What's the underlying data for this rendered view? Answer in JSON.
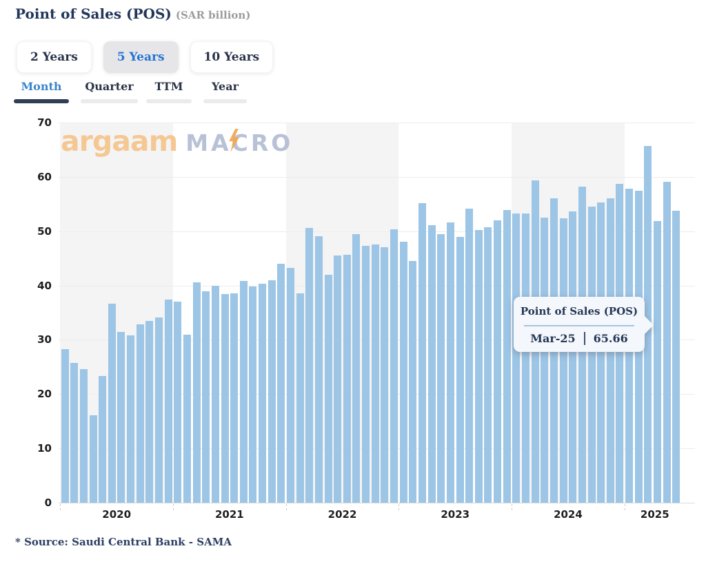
{
  "header": {
    "title": "Point of Sales (POS)",
    "unit": "(SAR billion)"
  },
  "periods": [
    {
      "label": "2 Years",
      "active": false
    },
    {
      "label": "5 Years",
      "active": true
    },
    {
      "label": "10 Years",
      "active": false
    }
  ],
  "tabs": [
    {
      "label": "Month",
      "active": true
    },
    {
      "label": "Quarter",
      "active": false
    },
    {
      "label": "TTM",
      "active": false
    },
    {
      "label": "Year",
      "active": false
    }
  ],
  "watermark": {
    "brand": "argaam",
    "suffix": "MACRO"
  },
  "tooltip": {
    "title": "Point of Sales (POS)",
    "label": "Mar-25",
    "value": "65.66"
  },
  "source": "* Source: Saudi Central Bank - SAMA",
  "colors": {
    "bar": "#9cc5e6",
    "band_gray": "#f4f4f5",
    "accent_blue": "#2472d2",
    "navy": "#22365a"
  },
  "chart_data": {
    "type": "bar",
    "title": "Point of Sales (POS)",
    "ylabel": "SAR billion",
    "ylim": [
      0,
      70
    ],
    "yticks": [
      0,
      10,
      20,
      30,
      40,
      50,
      60,
      70
    ],
    "grid": true,
    "legend": false,
    "year_labels": [
      "2020",
      "2021",
      "2022",
      "2023",
      "2024",
      "2025"
    ],
    "x": [
      "Jan-20",
      "Feb-20",
      "Mar-20",
      "Apr-20",
      "May-20",
      "Jun-20",
      "Jul-20",
      "Aug-20",
      "Sep-20",
      "Oct-20",
      "Nov-20",
      "Dec-20",
      "Jan-21",
      "Feb-21",
      "Mar-21",
      "Apr-21",
      "May-21",
      "Jun-21",
      "Jul-21",
      "Aug-21",
      "Sep-21",
      "Oct-21",
      "Nov-21",
      "Dec-21",
      "Jan-22",
      "Feb-22",
      "Mar-22",
      "Apr-22",
      "May-22",
      "Jun-22",
      "Jul-22",
      "Aug-22",
      "Sep-22",
      "Oct-22",
      "Nov-22",
      "Dec-22",
      "Jan-23",
      "Feb-23",
      "Mar-23",
      "Apr-23",
      "May-23",
      "Jun-23",
      "Jul-23",
      "Aug-23",
      "Sep-23",
      "Oct-23",
      "Nov-23",
      "Dec-23",
      "Jan-24",
      "Feb-24",
      "Mar-24",
      "Apr-24",
      "May-24",
      "Jun-24",
      "Jul-24",
      "Aug-24",
      "Sep-24",
      "Oct-24",
      "Nov-24",
      "Dec-24",
      "Jan-25",
      "Feb-25",
      "Mar-25",
      "Apr-25",
      "May-25",
      "Jun-25"
    ],
    "values": [
      28.3,
      25.7,
      24.6,
      16.1,
      23.3,
      36.7,
      31.4,
      30.8,
      32.9,
      33.5,
      34.1,
      37.4,
      37.0,
      30.9,
      40.6,
      38.9,
      40.0,
      38.4,
      38.6,
      40.8,
      39.8,
      40.3,
      41.0,
      44.0,
      43.2,
      38.6,
      50.6,
      49.1,
      42.0,
      45.5,
      45.7,
      49.5,
      47.3,
      47.5,
      47.0,
      50.3,
      48.0,
      44.5,
      55.1,
      51.1,
      49.5,
      51.6,
      49.0,
      54.2,
      50.2,
      50.7,
      52.0,
      53.9,
      53.3,
      53.3,
      59.3,
      52.5,
      56.1,
      52.4,
      53.7,
      58.2,
      54.5,
      55.3,
      56.0,
      58.7,
      57.8,
      57.4,
      65.66,
      51.9,
      59.1,
      53.8
    ],
    "highlight": {
      "x": "Mar-25",
      "value": 65.66
    }
  }
}
